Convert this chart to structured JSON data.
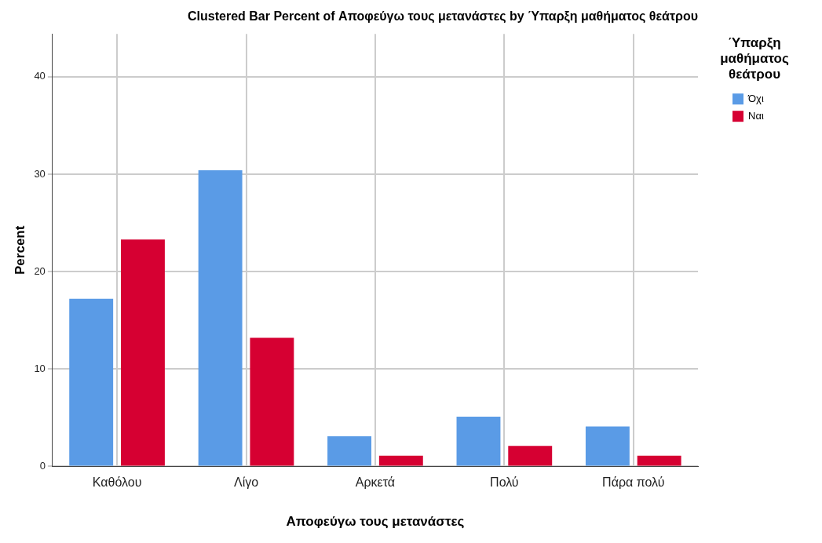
{
  "chart_data": {
    "type": "bar",
    "title": "Clustered Bar Percent of Αποφεύγω τους μετανάστες by Ύπαρξη μαθήματος θεάτρου",
    "xlabel": "Αποφεύγω τους μετανάστες",
    "ylabel": "Percent",
    "legend_title": "Ύπαρξη μαθήματος θεάτρου",
    "categories": [
      "Καθόλου",
      "Λίγο",
      "Αρκετά",
      "Πολύ",
      "Πάρα πολύ"
    ],
    "series": [
      {
        "name": "Όχι",
        "color": "#5a9be6",
        "values": [
          17.2,
          30.4,
          3.1,
          5.1,
          4.1
        ]
      },
      {
        "name": "Ναι",
        "color": "#d60032",
        "values": [
          23.3,
          13.2,
          1.1,
          2.1,
          1.1
        ]
      }
    ],
    "ylim": [
      0,
      44.4
    ],
    "yticks": [
      0,
      10,
      20,
      30,
      40
    ],
    "grid": true,
    "legend": "top right"
  }
}
